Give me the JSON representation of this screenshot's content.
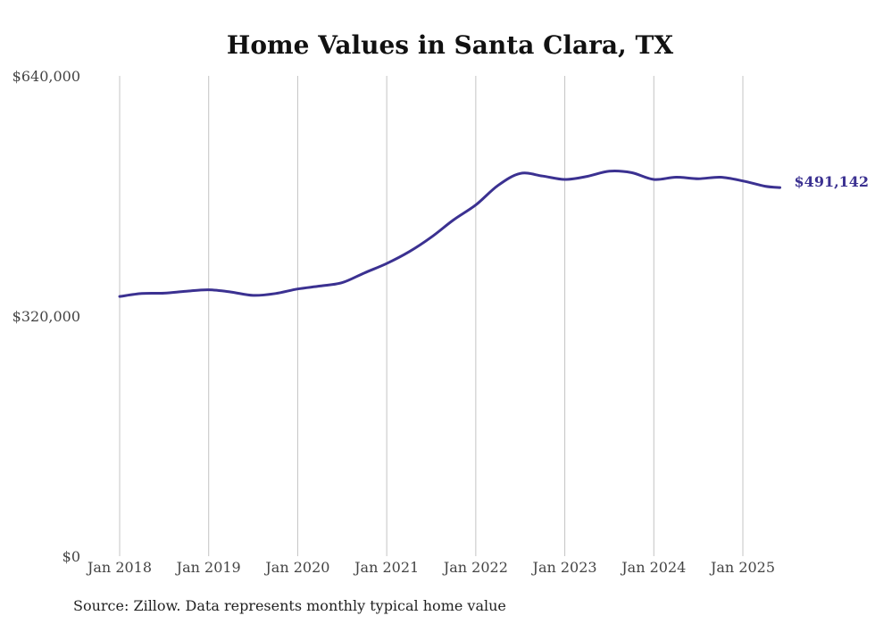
{
  "chart_data": {
    "type": "line",
    "title": "Home Values in Santa Clara, TX",
    "source": "Source: Zillow. Data represents monthly typical home value",
    "xlabel": "",
    "ylabel": "",
    "x_tick_labels": [
      "Jan 2018",
      "Jan 2019",
      "Jan 2020",
      "Jan 2021",
      "Jan 2022",
      "Jan 2023",
      "Jan 2024",
      "Jan 2025"
    ],
    "y_tick_labels": [
      "$0",
      "$320,000",
      "$640,000"
    ],
    "ylim": [
      0,
      640000
    ],
    "xlim": [
      "2018-01",
      "2025-06"
    ],
    "grid": "vertical lines at each January",
    "line_color": "#3b3191",
    "end_label": "$491,142",
    "series": [
      {
        "x": [
          "2018-01",
          "2018-04",
          "2018-07",
          "2018-10",
          "2019-01",
          "2019-04",
          "2019-07",
          "2019-10",
          "2020-01",
          "2020-04",
          "2020-07",
          "2020-10",
          "2021-01",
          "2021-04",
          "2021-07",
          "2021-10",
          "2022-01",
          "2022-04",
          "2022-07",
          "2022-10",
          "2023-01",
          "2023-04",
          "2023-07",
          "2023-10",
          "2024-01",
          "2024-04",
          "2024-07",
          "2024-10",
          "2025-01",
          "2025-04",
          "2025-06"
        ],
        "values": [
          346000,
          350000,
          350500,
          353000,
          355000,
          352000,
          347500,
          350000,
          356000,
          360000,
          364500,
          377500,
          390000,
          405500,
          425000,
          448000,
          468000,
          494000,
          510000,
          506500,
          502000,
          506000,
          513000,
          511000,
          502000,
          505000,
          503000,
          505000,
          500000,
          493000,
          491142
        ]
      }
    ]
  }
}
